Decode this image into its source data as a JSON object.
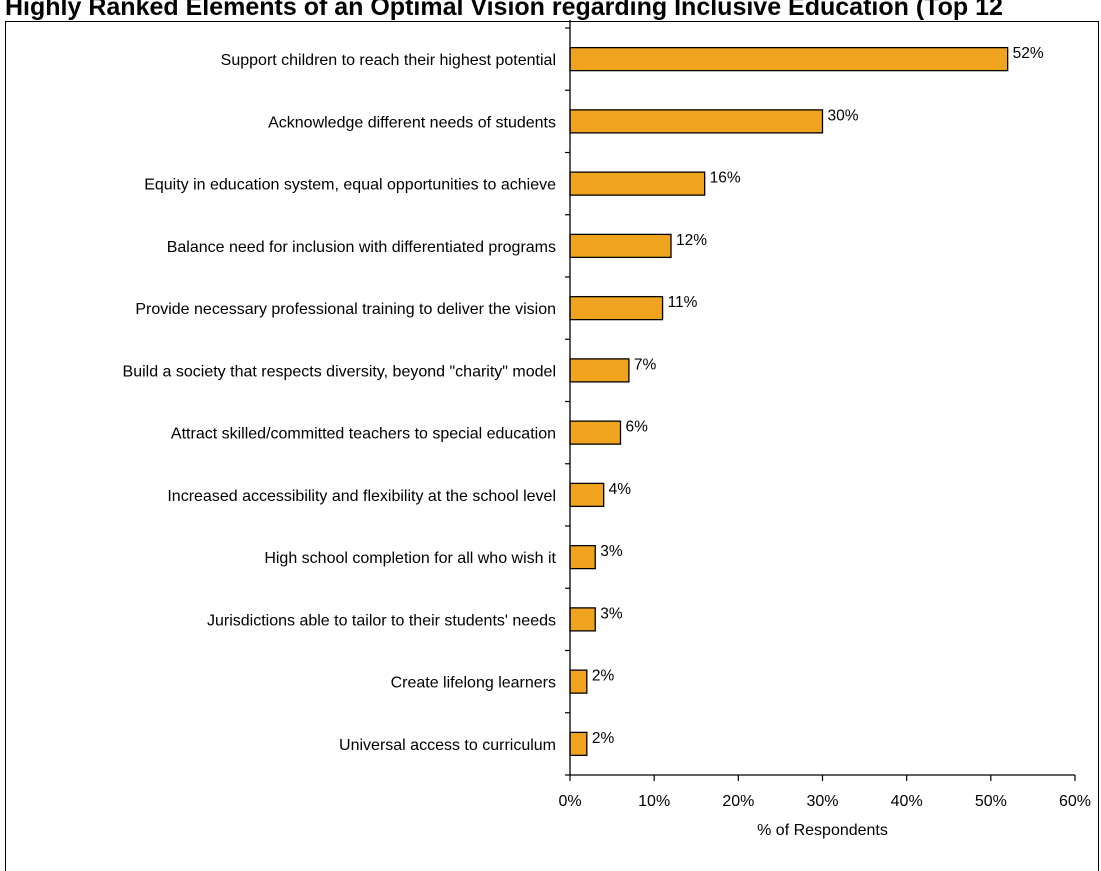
{
  "header": {
    "title_fragment": "Highly Ranked Elements of an Optimal Vision regarding Inclusive Education (Top 12"
  },
  "chart_data": {
    "type": "bar",
    "orientation": "horizontal",
    "categories": [
      "Support children to reach their highest potential",
      "Acknowledge different needs of students",
      "Equity in education system, equal opportunities to achieve",
      "Balance need for inclusion with differentiated programs",
      "Provide necessary professional training to deliver the vision",
      "Build a society that respects diversity, beyond \"charity\" model",
      "Attract skilled/committed teachers to special education",
      "Increased accessibility and flexibility at the school level",
      "High school completion for all who wish it",
      "Jurisdictions able to tailor to their students' needs",
      "Create lifelong learners",
      "Universal access to curriculum"
    ],
    "values": [
      52,
      30,
      16,
      12,
      11,
      7,
      6,
      4,
      3,
      3,
      2,
      2
    ],
    "value_labels": [
      "52%",
      "30%",
      "16%",
      "12%",
      "11%",
      "7%",
      "6%",
      "4%",
      "3%",
      "3%",
      "2%",
      "2%"
    ],
    "xlabel": "% of Respondents",
    "ylabel": "",
    "xlim": [
      0,
      60
    ],
    "xticks": [
      0,
      10,
      20,
      30,
      40,
      50,
      60
    ],
    "xtick_labels": [
      "0%",
      "10%",
      "20%",
      "30%",
      "40%",
      "50%",
      "60%"
    ],
    "grid": false,
    "legend": "none",
    "bar_color": "#F0A31F",
    "bar_edge_color": "#000000"
  }
}
